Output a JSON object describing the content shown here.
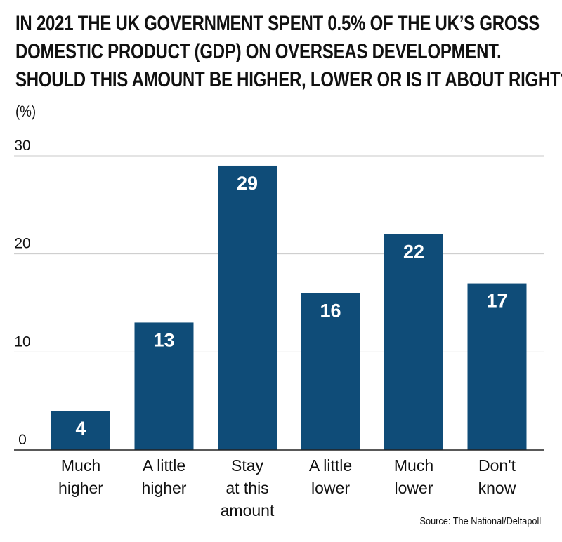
{
  "chart_data": {
    "type": "bar",
    "title_lines": [
      "IN 2021 THE UK GOVERNMENT SPENT 0.5% OF THE UK’S GROSS",
      "DOMESTIC PRODUCT (GDP) ON OVERSEAS DEVELOPMENT.",
      "SHOULD THIS AMOUNT BE HIGHER, LOWER OR IS IT ABOUT RIGHT?"
    ],
    "unit_label": "(%)",
    "categories": [
      [
        "Much",
        "higher"
      ],
      [
        "A little",
        "higher"
      ],
      [
        "Stay",
        "at this",
        "amount"
      ],
      [
        "A little",
        "lower"
      ],
      [
        "Much",
        "lower"
      ],
      [
        "Don't",
        "know"
      ]
    ],
    "values": [
      4,
      13,
      29,
      16,
      22,
      17
    ],
    "bar_labels": [
      "4",
      "13",
      "29",
      "16",
      "22",
      "17"
    ],
    "y_ticks": [
      "0",
      "10",
      "20",
      "30"
    ],
    "y_tick_values": [
      0,
      10,
      20,
      30
    ],
    "ylim": [
      0,
      30
    ],
    "grid": true,
    "legend": "none",
    "source": "Source: The National/Deltapoll",
    "colors": {
      "bar": "#0f4c78",
      "grid": "#c8c8c8",
      "axis": "#222222",
      "text": "#111111"
    }
  }
}
